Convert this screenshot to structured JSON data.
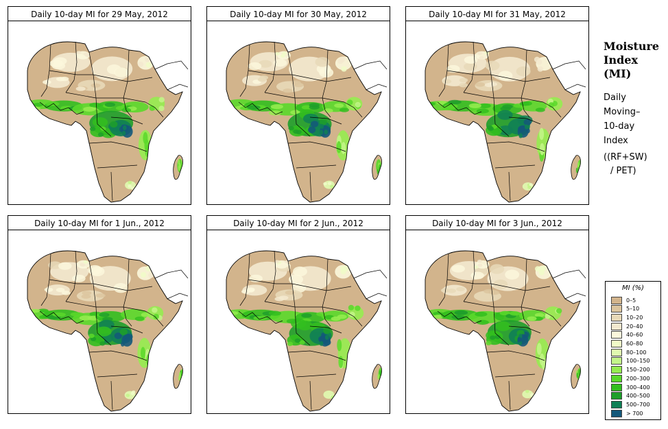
{
  "panels": [
    {
      "title": "Daily 10-day MI for  29 May, 2012"
    },
    {
      "title": "Daily 10-day MI for  30 May, 2012"
    },
    {
      "title": "Daily 10-day MI for  31 May, 2012"
    },
    {
      "title": "Daily 10-day MI for  1 Jun., 2012"
    },
    {
      "title": "Daily 10-day MI for  2 Jun., 2012"
    },
    {
      "title": "Daily 10-day MI for  3 Jun., 2012"
    }
  ],
  "side": {
    "title_line1": "Moisture",
    "title_line2": "Index",
    "title_line3": "(MI)",
    "desc_line1": "Daily",
    "desc_line2": "Moving–",
    "desc_line3": "10-day",
    "desc_line4": "Index",
    "formula_line1": "((RF+SW)",
    "formula_line2": "/ PET)"
  },
  "legend": {
    "title": "MI (%)",
    "classes": [
      {
        "label": "0–5",
        "color": "#d2b48c"
      },
      {
        "label": "5–10",
        "color": "#dcc59f"
      },
      {
        "label": "10–20",
        "color": "#e8d9b8"
      },
      {
        "label": "20–40",
        "color": "#f3e9cf"
      },
      {
        "label": "40–60",
        "color": "#fbf7dc"
      },
      {
        "label": "60–80",
        "color": "#f0fcc8"
      },
      {
        "label": "80–100",
        "color": "#e0fbb0"
      },
      {
        "label": "100–150",
        "color": "#c4f58a"
      },
      {
        "label": "150–200",
        "color": "#96ec50"
      },
      {
        "label": "200–300",
        "color": "#5ad82a"
      },
      {
        "label": "300–400",
        "color": "#32be1e"
      },
      {
        "label": "400–500",
        "color": "#1e9f2a"
      },
      {
        "label": "500–700",
        "color": "#0f8055"
      },
      {
        "label": "> 700",
        "color": "#14587a"
      }
    ]
  }
}
